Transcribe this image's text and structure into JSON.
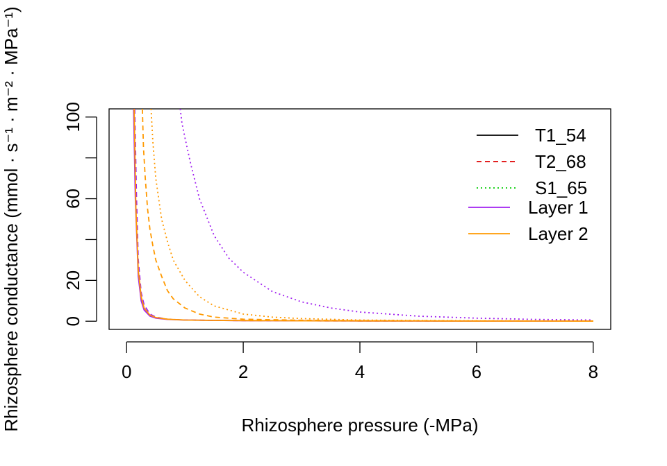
{
  "chart_data": {
    "type": "line",
    "title": "",
    "xlabel": "Rhizosphere pressure (-MPa)",
    "ylabel": "Rhizosphere conductance (mmol · s⁻¹ · m⁻² · MPa⁻¹)",
    "xlim": [
      -0.3,
      8.3
    ],
    "ylim": [
      -4,
      104
    ],
    "x_ticks": [
      0,
      2,
      4,
      6,
      8
    ],
    "y_ticks": [
      0,
      20,
      40,
      60,
      80,
      100
    ],
    "y_tick_labels": [
      "0",
      "20",
      "",
      "60",
      "",
      "100"
    ],
    "grid": false,
    "legend": {
      "position": "top-right",
      "linetype_entries": [
        {
          "label": "T1_54",
          "color": "#000000",
          "dash": "solid"
        },
        {
          "label": "T2_68",
          "color": "#DF0000",
          "dash": "dashed"
        },
        {
          "label": "S1_65",
          "color": "#00CD00",
          "dash": "dotted"
        }
      ],
      "layer_entries": [
        {
          "label": "Layer 1",
          "color": "#A020F0",
          "dash": "solid"
        },
        {
          "label": "Layer 2",
          "color": "#FF9900",
          "dash": "solid"
        }
      ]
    },
    "series": [
      {
        "color": "#A020F0",
        "dash": "solid",
        "x": [
          0.12,
          0.15,
          0.2,
          0.25,
          0.3,
          0.4,
          0.5,
          0.7,
          1.0,
          1.5,
          2,
          3,
          4,
          5,
          6,
          7,
          8
        ],
        "y": [
          104,
          60,
          22,
          10,
          5.5,
          2.5,
          1.5,
          0.9,
          0.6,
          0.4,
          0.3,
          0.2,
          0.15,
          0.1,
          0.08,
          0.06,
          0.05
        ]
      },
      {
        "color": "#A020F0",
        "dash": "dashed",
        "x": [
          0.14,
          0.17,
          0.2,
          0.25,
          0.3,
          0.4,
          0.5,
          0.7,
          1.0,
          1.5,
          2,
          3,
          4,
          5,
          6,
          7,
          8
        ],
        "y": [
          104,
          60,
          30,
          14,
          8,
          3.5,
          2.0,
          1.0,
          0.6,
          0.4,
          0.3,
          0.2,
          0.15,
          0.1,
          0.08,
          0.06,
          0.05
        ]
      },
      {
        "color": "#A020F0",
        "dash": "dotted",
        "x": [
          0.92,
          0.95,
          1.0,
          1.1,
          1.25,
          1.5,
          1.75,
          2.0,
          2.5,
          3,
          3.5,
          4,
          5,
          6,
          7,
          8
        ],
        "y": [
          104,
          97,
          90,
          77,
          60,
          42,
          31,
          24,
          14.5,
          9.5,
          6.5,
          4.5,
          2.5,
          1.5,
          0.9,
          0.6
        ]
      },
      {
        "color": "#FF9900",
        "dash": "solid",
        "x": [
          0.13,
          0.16,
          0.2,
          0.25,
          0.3,
          0.4,
          0.5,
          0.7,
          1.0,
          1.5,
          2,
          3,
          4,
          5,
          6,
          7,
          8
        ],
        "y": [
          104,
          55,
          25,
          12,
          6.5,
          3.0,
          1.8,
          1.0,
          0.6,
          0.4,
          0.3,
          0.2,
          0.15,
          0.1,
          0.08,
          0.06,
          0.05
        ]
      },
      {
        "color": "#FF9900",
        "dash": "dashed",
        "x": [
          0.27,
          0.29,
          0.32,
          0.36,
          0.4,
          0.45,
          0.5,
          0.6,
          0.7,
          0.8,
          1.0,
          1.25,
          1.5,
          2,
          3,
          4,
          6,
          8
        ],
        "y": [
          104,
          85,
          70,
          55,
          45,
          37,
          30,
          22,
          15,
          11,
          6.5,
          3.5,
          2.0,
          1.0,
          0.5,
          0.3,
          0.15,
          0.1
        ]
      },
      {
        "color": "#FF9900",
        "dash": "dotted",
        "x": [
          0.42,
          0.45,
          0.5,
          0.6,
          0.7,
          0.8,
          1.0,
          1.25,
          1.5,
          2,
          2.5,
          3,
          4,
          5,
          6,
          8
        ],
        "y": [
          104,
          88,
          70,
          50,
          39,
          30,
          20,
          12,
          7.5,
          3.5,
          2.0,
          1.3,
          0.6,
          0.35,
          0.2,
          0.1
        ]
      }
    ]
  }
}
